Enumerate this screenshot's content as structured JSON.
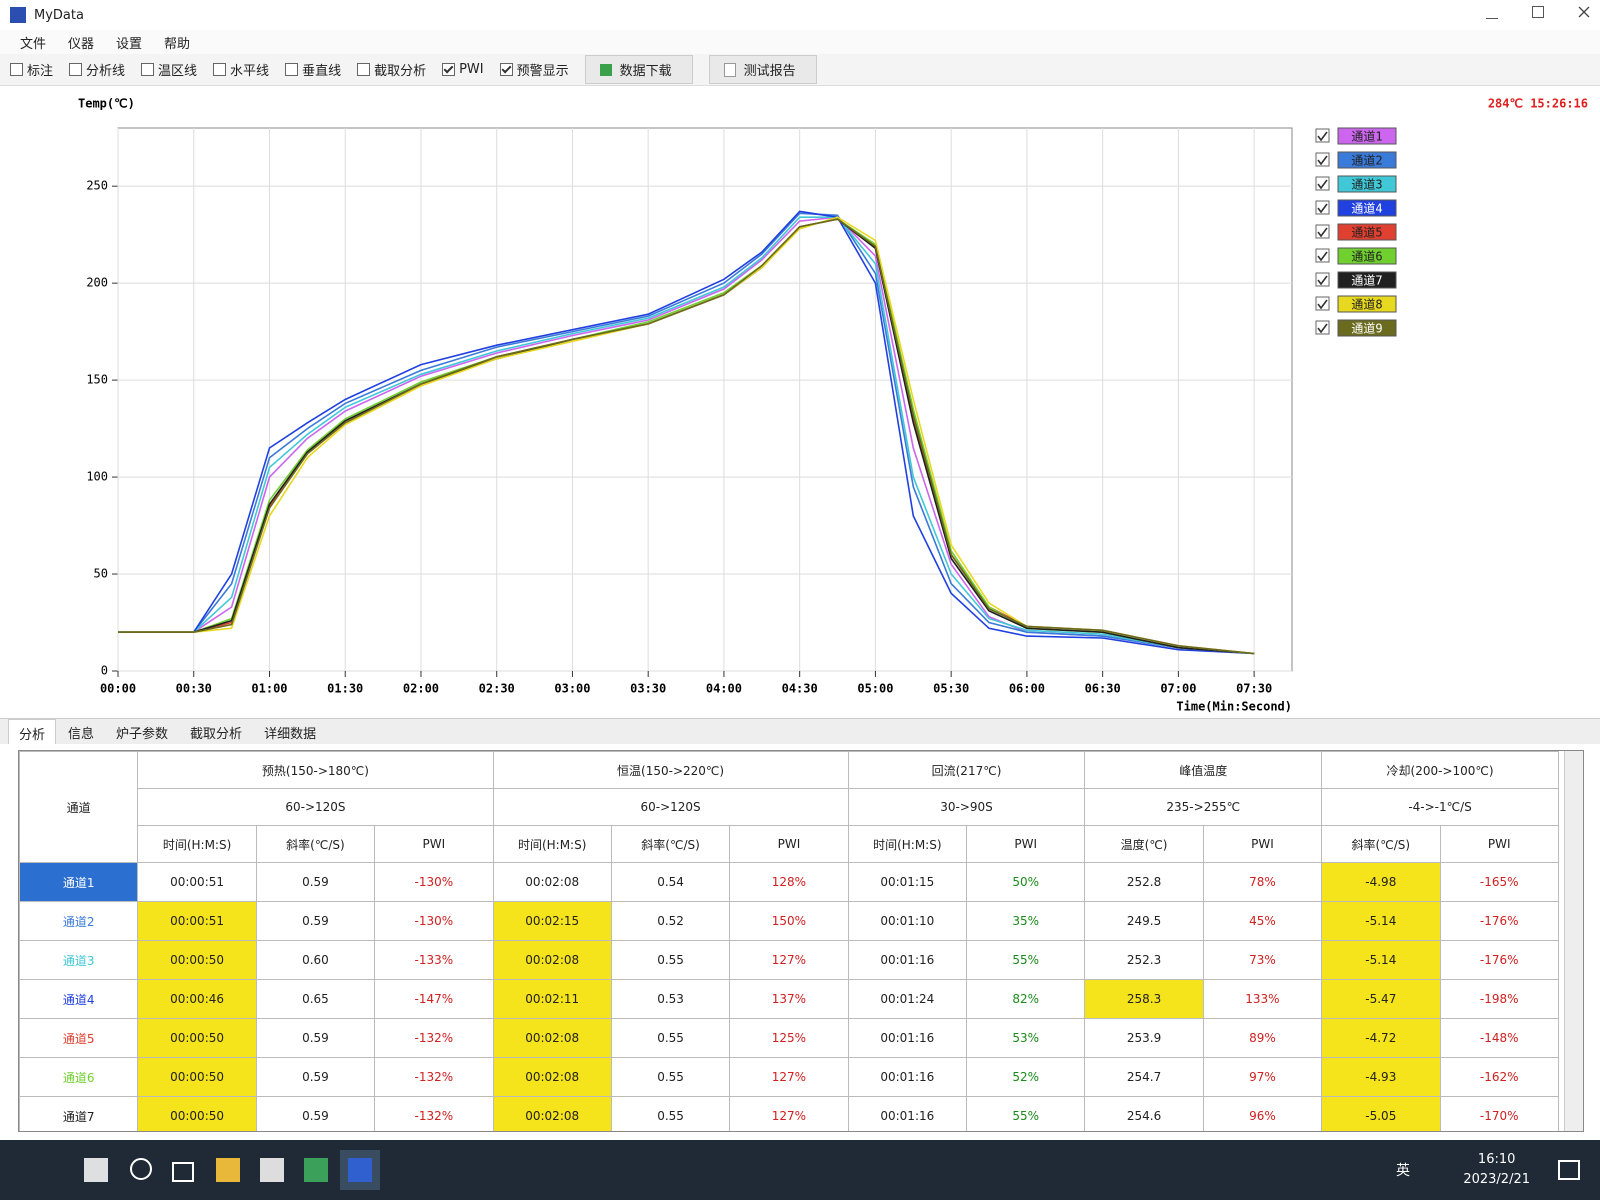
{
  "window": {
    "title": "MyData",
    "menu": [
      "文件",
      "仪器",
      "设置",
      "帮助"
    ],
    "toolbar": {
      "checkboxes": [
        {
          "label": "标注",
          "checked": false
        },
        {
          "label": "分析线",
          "checked": false
        },
        {
          "label": "温区线",
          "checked": false
        },
        {
          "label": "水平线",
          "checked": false
        },
        {
          "label": "垂直线",
          "checked": false
        },
        {
          "label": "截取分析",
          "checked": false
        },
        {
          "label": "PWI",
          "checked": true
        },
        {
          "label": "预警显示",
          "checked": true
        }
      ],
      "buttons": [
        "数据下载",
        "测试报告"
      ]
    }
  },
  "status": "284℃ 15:26:16",
  "chart_data": {
    "type": "line",
    "y_label": "Temp(℃)",
    "x_label": "Time(Min:Second)",
    "x": [
      0,
      30,
      45,
      60,
      75,
      90,
      120,
      150,
      180,
      210,
      240,
      255,
      270,
      285,
      300,
      315,
      330,
      345,
      360,
      390,
      420,
      450
    ],
    "xlim": [
      0,
      465
    ],
    "xticks": [
      {
        "value": 0,
        "label": "00:00"
      },
      {
        "value": 30,
        "label": "00:30"
      },
      {
        "value": 60,
        "label": "01:00"
      },
      {
        "value": 90,
        "label": "01:30"
      },
      {
        "value": 120,
        "label": "02:00"
      },
      {
        "value": 150,
        "label": "02:30"
      },
      {
        "value": 180,
        "label": "03:00"
      },
      {
        "value": 210,
        "label": "03:30"
      },
      {
        "value": 240,
        "label": "04:00"
      },
      {
        "value": 270,
        "label": "04:30"
      },
      {
        "value": 300,
        "label": "05:00"
      },
      {
        "value": 330,
        "label": "05:30"
      },
      {
        "value": 360,
        "label": "06:00"
      },
      {
        "value": 390,
        "label": "06:30"
      },
      {
        "value": 420,
        "label": "07:00"
      },
      {
        "value": 450,
        "label": "07:30"
      }
    ],
    "ylim": [
      0,
      280
    ],
    "yticks": [
      0,
      50,
      100,
      150,
      200,
      250
    ],
    "grid": true,
    "series": [
      {
        "name": "通道1",
        "color": "#cc66ee",
        "values": [
          20,
          20,
          33,
          100,
          120,
          134,
          152,
          164,
          173,
          181,
          197,
          212,
          232,
          234,
          214,
          115,
          55,
          28,
          20,
          18,
          12,
          9
        ]
      },
      {
        "name": "通道2",
        "color": "#3a7ad9",
        "values": [
          20,
          20,
          45,
          110,
          125,
          138,
          155,
          167,
          175,
          183,
          200,
          215,
          236,
          235,
          205,
          95,
          45,
          25,
          20,
          18,
          12,
          9
        ]
      },
      {
        "name": "通道3",
        "color": "#40c8d8",
        "values": [
          20,
          20,
          38,
          105,
          122,
          136,
          153,
          165,
          174,
          182,
          198,
          213,
          234,
          234,
          210,
          100,
          50,
          27,
          21,
          19,
          12,
          9
        ]
      },
      {
        "name": "通道4",
        "color": "#2040e0",
        "values": [
          20,
          20,
          50,
          115,
          128,
          140,
          158,
          168,
          176,
          184,
          202,
          216,
          237,
          234,
          200,
          80,
          40,
          22,
          18,
          17,
          11,
          9
        ]
      },
      {
        "name": "通道5",
        "color": "#e04030",
        "values": [
          20,
          20,
          25,
          85,
          112,
          128,
          148,
          162,
          171,
          179,
          194,
          209,
          229,
          233,
          218,
          130,
          60,
          33,
          23,
          21,
          13,
          9
        ]
      },
      {
        "name": "通道6",
        "color": "#70d030",
        "values": [
          20,
          20,
          27,
          88,
          114,
          130,
          149,
          162,
          171,
          180,
          195,
          209,
          229,
          233,
          220,
          135,
          62,
          33,
          22,
          20,
          12,
          9
        ]
      },
      {
        "name": "通道7",
        "color": "#202020",
        "values": [
          20,
          20,
          26,
          86,
          113,
          129,
          148,
          161,
          171,
          179,
          194,
          208,
          229,
          233,
          218,
          128,
          58,
          31,
          22,
          20,
          12,
          9
        ]
      },
      {
        "name": "通道8",
        "color": "#e8d820",
        "values": [
          20,
          20,
          22,
          80,
          110,
          127,
          147,
          161,
          170,
          179,
          194,
          208,
          228,
          234,
          222,
          140,
          65,
          35,
          23,
          21,
          13,
          9
        ]
      },
      {
        "name": "通道9",
        "color": "#6b6b20",
        "values": [
          20,
          20,
          24,
          84,
          112,
          128,
          148,
          162,
          171,
          179,
          194,
          209,
          229,
          233,
          219,
          132,
          60,
          32,
          23,
          21,
          13,
          9
        ]
      }
    ]
  },
  "tabs": [
    "分析",
    "信息",
    "炉子参数",
    "截取分析",
    "详细数据"
  ],
  "table": {
    "first_column": "通道",
    "groups": [
      {
        "name": "预热(150->180℃)",
        "range": "60->120S",
        "columns": [
          "时间(H:M:S)",
          "斜率(℃/S)",
          "PWI"
        ]
      },
      {
        "name": "恒温(150->220℃)",
        "range": "60->120S",
        "columns": [
          "时间(H:M:S)",
          "斜率(℃/S)",
          "PWI"
        ]
      },
      {
        "name": "回流(217℃)",
        "range": "30->90S",
        "columns": [
          "时间(H:M:S)",
          "PWI"
        ]
      },
      {
        "name": "峰值温度",
        "range": "235->255℃",
        "columns": [
          "温度(℃)",
          "PWI"
        ]
      },
      {
        "name": "冷却(200->100℃)",
        "range": "-4->-1℃/S",
        "columns": [
          "斜率(℃/S)",
          "PWI"
        ]
      }
    ],
    "rows": [
      [
        "通道1",
        "00:00:51",
        "0.59",
        "-130%",
        "00:02:08",
        "0.54",
        "128%",
        "00:01:15",
        "50%",
        "252.8",
        "78%",
        "-4.98",
        "-165%"
      ],
      [
        "通道2",
        "00:00:51",
        "0.59",
        "-130%",
        "00:02:15",
        "0.52",
        "150%",
        "00:01:10",
        "35%",
        "249.5",
        "45%",
        "-5.14",
        "-176%"
      ],
      [
        "通道3",
        "00:00:50",
        "0.60",
        "-133%",
        "00:02:08",
        "0.55",
        "127%",
        "00:01:16",
        "55%",
        "252.3",
        "73%",
        "-5.14",
        "-176%"
      ],
      [
        "通道4",
        "00:00:46",
        "0.65",
        "-147%",
        "00:02:11",
        "0.53",
        "137%",
        "00:01:24",
        "82%",
        "258.3",
        "133%",
        "-5.47",
        "-198%"
      ],
      [
        "通道5",
        "00:00:50",
        "0.59",
        "-132%",
        "00:02:08",
        "0.55",
        "125%",
        "00:01:16",
        "53%",
        "253.9",
        "89%",
        "-4.72",
        "-148%"
      ],
      [
        "通道6",
        "00:00:50",
        "0.59",
        "-132%",
        "00:02:08",
        "0.55",
        "127%",
        "00:01:16",
        "52%",
        "254.7",
        "97%",
        "-4.93",
        "-162%"
      ],
      [
        "通道7",
        "00:00:50",
        "0.59",
        "-132%",
        "00:02:08",
        "0.55",
        "127%",
        "00:01:16",
        "55%",
        "254.6",
        "96%",
        "-5.05",
        "-170%"
      ]
    ]
  },
  "taskbar": {
    "ime": "英",
    "time": "16:10",
    "date": "2023/2/21"
  }
}
